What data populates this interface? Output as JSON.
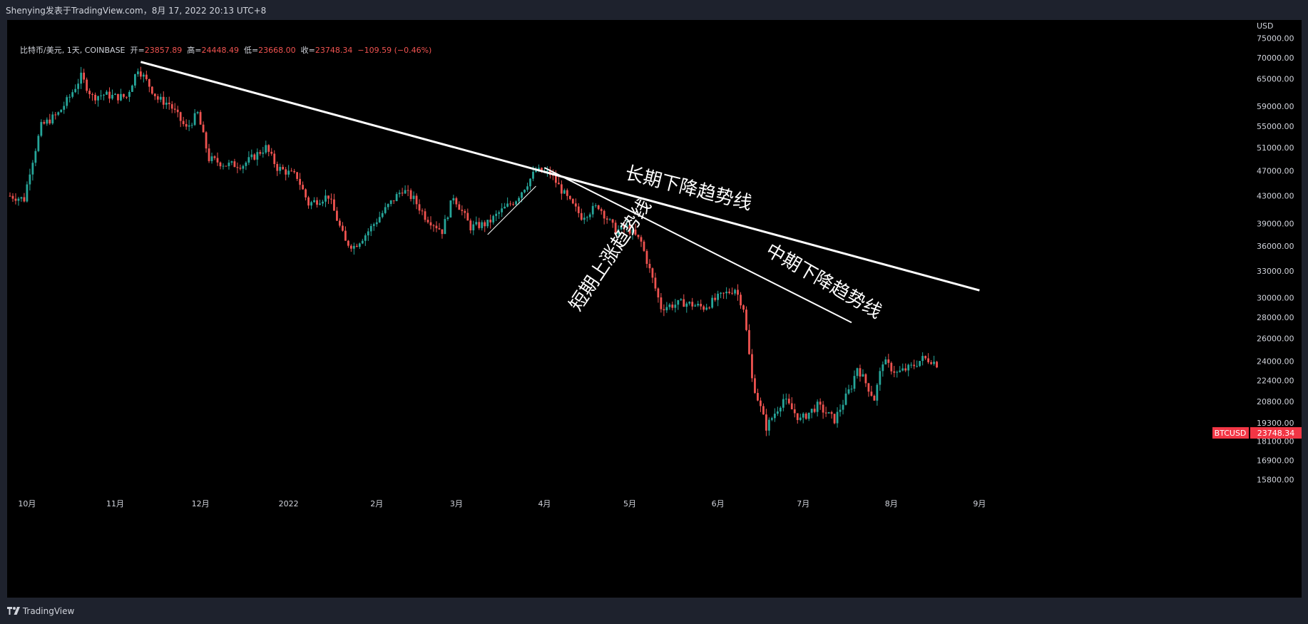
{
  "header": {
    "publisher_line": "Shenying发表于TradingView.com，8月 17, 2022 20:13 UTC+8"
  },
  "legend": {
    "symbol": "比特币/美元, 1天, COINBASE",
    "open_label": "开=",
    "open": "23857.89",
    "high_label": "高=",
    "high": "24448.49",
    "low_label": "低=",
    "low": "23668.00",
    "close_label": "收=",
    "close": "23748.34",
    "change": "−109.59 (−0.46%)"
  },
  "footer": {
    "brand": "TradingView"
  },
  "colors": {
    "up": "#26a69a",
    "down": "#ef5350",
    "background": "#000000",
    "line": "#ffffff",
    "price_tag": "#f23645"
  },
  "chart_data": {
    "type": "candlestick",
    "symbol": "BTCUSD",
    "exchange": "COINBASE",
    "interval": "1天",
    "currency": "USD",
    "y_scale": "log",
    "ylim": [
      15000,
      80000
    ],
    "y_ticks": [
      "75000.00",
      "70000.00",
      "65000.00",
      "59000.00",
      "55000.00",
      "51000.00",
      "47000.00",
      "43000.00",
      "39000.00",
      "36000.00",
      "33000.00",
      "30000.00",
      "28000.00",
      "26000.00",
      "24000.00",
      "22400.00",
      "20800.00",
      "19300.00",
      "18100.00",
      "16900.00",
      "15800.00"
    ],
    "x_ticks": [
      {
        "label": "10月",
        "date": "2021-10-01"
      },
      {
        "label": "11月",
        "date": "2021-11-01"
      },
      {
        "label": "12月",
        "date": "2021-12-01"
      },
      {
        "label": "2022",
        "date": "2022-01-01"
      },
      {
        "label": "2月",
        "date": "2022-02-01"
      },
      {
        "label": "3月",
        "date": "2022-03-01"
      },
      {
        "label": "4月",
        "date": "2022-04-01"
      },
      {
        "label": "5月",
        "date": "2022-05-01"
      },
      {
        "label": "6月",
        "date": "2022-06-01"
      },
      {
        "label": "7月",
        "date": "2022-07-01"
      },
      {
        "label": "8月",
        "date": "2022-08-01"
      },
      {
        "label": "9月",
        "date": "2022-09-01"
      }
    ],
    "xlim": [
      "2021-09-24",
      "2022-09-29"
    ],
    "price_path": [
      [
        "2021-09-25",
        43000
      ],
      [
        "2021-09-30",
        42500
      ],
      [
        "2021-10-02",
        47000
      ],
      [
        "2021-10-06",
        55000
      ],
      [
        "2021-10-12",
        57500
      ],
      [
        "2021-10-16",
        61000
      ],
      [
        "2021-10-20",
        65500
      ],
      [
        "2021-10-24",
        61000
      ],
      [
        "2021-10-28",
        61500
      ],
      [
        "2021-11-01",
        61000
      ],
      [
        "2021-11-05",
        61000
      ],
      [
        "2021-11-09",
        67500
      ],
      [
        "2021-11-12",
        64500
      ],
      [
        "2021-11-16",
        60500
      ],
      [
        "2021-11-20",
        59500
      ],
      [
        "2021-11-26",
        54500
      ],
      [
        "2021-11-30",
        57500
      ],
      [
        "2021-12-04",
        49000
      ],
      [
        "2021-12-10",
        48000
      ],
      [
        "2021-12-16",
        48000
      ],
      [
        "2021-12-24",
        51000
      ],
      [
        "2021-12-28",
        47500
      ],
      [
        "2022-01-04",
        46000
      ],
      [
        "2022-01-08",
        41800
      ],
      [
        "2022-01-15",
        43000
      ],
      [
        "2022-01-21",
        36500
      ],
      [
        "2022-01-24",
        36000
      ],
      [
        "2022-01-28",
        37500
      ],
      [
        "2022-02-05",
        41500
      ],
      [
        "2022-02-10",
        44000
      ],
      [
        "2022-02-14",
        42500
      ],
      [
        "2022-02-18",
        40000
      ],
      [
        "2022-02-24",
        38000
      ],
      [
        "2022-02-28",
        43000
      ],
      [
        "2022-03-06",
        38500
      ],
      [
        "2022-03-12",
        39000
      ],
      [
        "2022-03-16",
        40500
      ],
      [
        "2022-03-22",
        42500
      ],
      [
        "2022-03-29",
        47000
      ],
      [
        "2022-04-03",
        46500
      ],
      [
        "2022-04-10",
        42000
      ],
      [
        "2022-04-14",
        40000
      ],
      [
        "2022-04-20",
        41500
      ],
      [
        "2022-04-26",
        38000
      ],
      [
        "2022-04-30",
        38500
      ],
      [
        "2022-05-05",
        36500
      ],
      [
        "2022-05-10",
        31000
      ],
      [
        "2022-05-12",
        29000
      ],
      [
        "2022-05-20",
        29500
      ],
      [
        "2022-05-27",
        29000
      ],
      [
        "2022-06-01",
        30000
      ],
      [
        "2022-06-07",
        31000
      ],
      [
        "2022-06-10",
        29000
      ],
      [
        "2022-06-13",
        22500
      ],
      [
        "2022-06-18",
        19000
      ],
      [
        "2022-06-24",
        21000
      ],
      [
        "2022-06-30",
        19500
      ],
      [
        "2022-07-06",
        20500
      ],
      [
        "2022-07-12",
        19500
      ],
      [
        "2022-07-18",
        22000
      ],
      [
        "2022-07-20",
        23500
      ],
      [
        "2022-07-26",
        21000
      ],
      [
        "2022-07-29",
        24000
      ],
      [
        "2022-08-03",
        23000
      ],
      [
        "2022-08-08",
        23500
      ],
      [
        "2022-08-12",
        24200
      ],
      [
        "2022-08-15",
        24100
      ],
      [
        "2022-08-17",
        23748
      ]
    ],
    "trendlines": [
      {
        "label": "长期下降趋势线",
        "from": [
          "2021-11-10",
          69000
        ],
        "to": [
          "2022-09-01",
          30800
        ]
      },
      {
        "label": "中期下降趋势线",
        "from": [
          "2022-04-01",
          47500
        ],
        "to": [
          "2022-07-18",
          27500
        ]
      },
      {
        "label": "短期上涨趋势线",
        "from": [
          "2022-03-12",
          37500
        ],
        "to": [
          "2022-03-29",
          44500
        ]
      }
    ],
    "last_price": {
      "label": "BTCUSD",
      "value": "23748.34"
    }
  }
}
